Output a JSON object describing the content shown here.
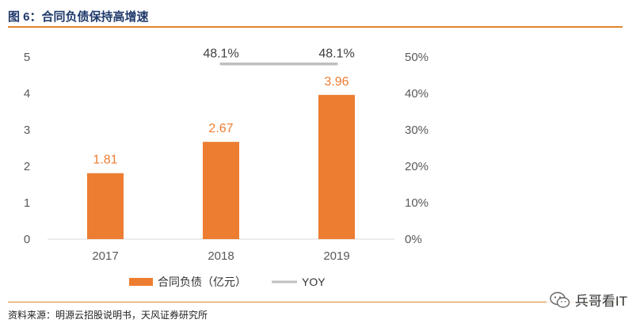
{
  "header": {
    "title": "图 6：合同负债保持高增速"
  },
  "chart_data": {
    "type": "bar",
    "title": "图 6：合同负债保持高增速",
    "categories": [
      "2017",
      "2018",
      "2019"
    ],
    "series": [
      {
        "name": "合同负债（亿元）",
        "type": "bar",
        "axis": "left",
        "color": "#ed7d31",
        "values": [
          1.81,
          2.67,
          3.96
        ],
        "labels": [
          "1.81",
          "2.67",
          "3.96"
        ]
      },
      {
        "name": "YOY",
        "type": "line",
        "axis": "right",
        "color": "#bfbfbf",
        "values": [
          null,
          48.1,
          48.1
        ],
        "labels": [
          "",
          "48.1%",
          "48.1%"
        ]
      }
    ],
    "ylim": [
      0,
      5
    ],
    "yticks": [
      "0",
      "1",
      "2",
      "3",
      "4",
      "5"
    ],
    "y2lim": [
      0,
      50
    ],
    "y2ticks": [
      "0%",
      "10%",
      "20%",
      "30%",
      "40%",
      "50%"
    ],
    "legend": [
      "合同负债（亿元）",
      "YOY"
    ],
    "legend_position": "bottom-center",
    "grid": false
  },
  "footer": {
    "source": "资料来源：明源云招股说明书，天风证券研究所"
  },
  "watermark": {
    "text": "兵哥看IT"
  }
}
